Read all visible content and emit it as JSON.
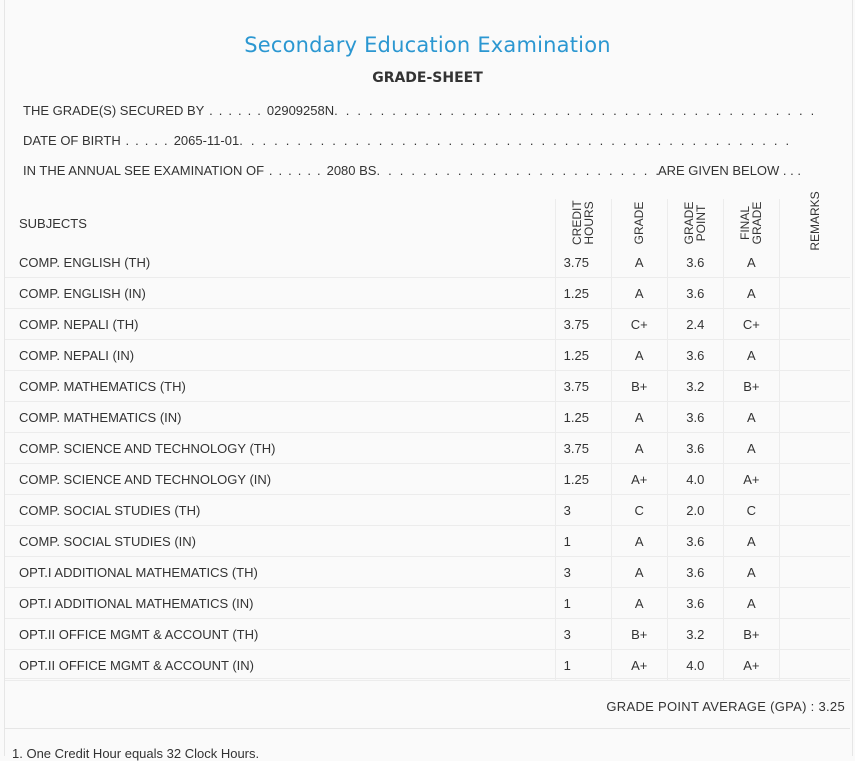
{
  "header": {
    "title": "Secondary Education Examination",
    "subtitle": "GRADE-SHEET"
  },
  "info": {
    "secured_by_label": "THE GRADE(S) SECURED BY",
    "secured_by_value": "02909258N",
    "dob_label": "DATE OF BIRTH",
    "dob_value": "2065-11-01",
    "exam_label": "IN THE ANNUAL SEE EXAMINATION OF",
    "exam_value": "2080 BS",
    "exam_suffix": "ARE GIVEN BELOW . . ."
  },
  "table": {
    "headers": {
      "subjects": "SUBJECTS",
      "credit_hours": "CREDIT HOURS",
      "grade": "GRADE",
      "grade_point": "GRADE POINT",
      "final_grade": "FINAL GRADE",
      "remarks": "REMARKS"
    },
    "rows": [
      {
        "subject": "COMP. ENGLISH (TH)",
        "credit": "3.75",
        "grade": "A",
        "point": "3.6",
        "final": "A",
        "remarks": ""
      },
      {
        "subject": "COMP. ENGLISH (IN)",
        "credit": "1.25",
        "grade": "A",
        "point": "3.6",
        "final": "A",
        "remarks": ""
      },
      {
        "subject": "COMP. NEPALI (TH)",
        "credit": "3.75",
        "grade": "C+",
        "point": "2.4",
        "final": "C+",
        "remarks": ""
      },
      {
        "subject": "COMP. NEPALI (IN)",
        "credit": "1.25",
        "grade": "A",
        "point": "3.6",
        "final": "A",
        "remarks": ""
      },
      {
        "subject": "COMP. MATHEMATICS (TH)",
        "credit": "3.75",
        "grade": "B+",
        "point": "3.2",
        "final": "B+",
        "remarks": ""
      },
      {
        "subject": "COMP. MATHEMATICS (IN)",
        "credit": "1.25",
        "grade": "A",
        "point": "3.6",
        "final": "A",
        "remarks": ""
      },
      {
        "subject": "COMP. SCIENCE AND TECHNOLOGY (TH)",
        "credit": "3.75",
        "grade": "A",
        "point": "3.6",
        "final": "A",
        "remarks": ""
      },
      {
        "subject": "COMP. SCIENCE AND TECHNOLOGY (IN)",
        "credit": "1.25",
        "grade": "A+",
        "point": "4.0",
        "final": "A+",
        "remarks": ""
      },
      {
        "subject": "COMP. SOCIAL STUDIES (TH)",
        "credit": "3",
        "grade": "C",
        "point": "2.0",
        "final": "C",
        "remarks": ""
      },
      {
        "subject": "COMP. SOCIAL STUDIES (IN)",
        "credit": "1",
        "grade": "A",
        "point": "3.6",
        "final": "A",
        "remarks": ""
      },
      {
        "subject": "OPT.I ADDITIONAL MATHEMATICS (TH)",
        "credit": "3",
        "grade": "A",
        "point": "3.6",
        "final": "A",
        "remarks": ""
      },
      {
        "subject": "OPT.I ADDITIONAL MATHEMATICS (IN)",
        "credit": "1",
        "grade": "A",
        "point": "3.6",
        "final": "A",
        "remarks": ""
      },
      {
        "subject": "OPT.II OFFICE MGMT & ACCOUNT (TH)",
        "credit": "3",
        "grade": "B+",
        "point": "3.2",
        "final": "B+",
        "remarks": ""
      },
      {
        "subject": "OPT.II OFFICE MGMT & ACCOUNT (IN)",
        "credit": "1",
        "grade": "A+",
        "point": "4.0",
        "final": "A+",
        "remarks": ""
      }
    ]
  },
  "gpa": {
    "label": "GRADE POINT AVERAGE (GPA) : 3.25"
  },
  "notes": {
    "note_1": "1. One Credit Hour equals 32 Clock Hours."
  },
  "colors": {
    "title": "#2b97d1",
    "text": "#333333",
    "background": "#fafafa",
    "rule": "#ececec"
  }
}
